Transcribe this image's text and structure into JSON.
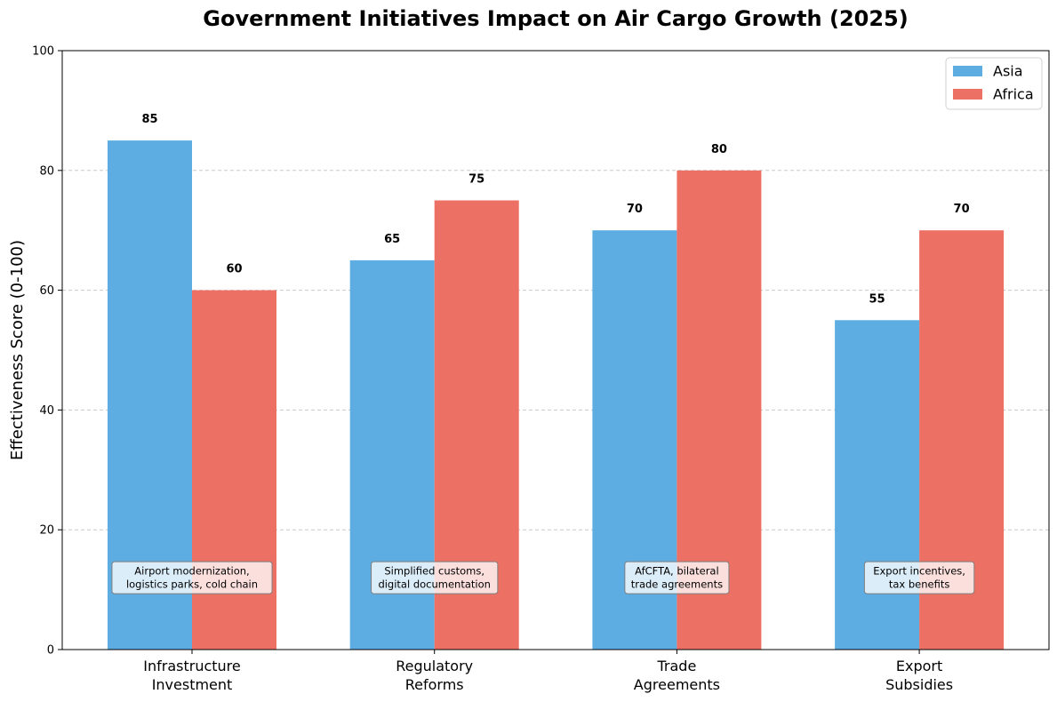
{
  "chart_data": {
    "type": "bar",
    "title": "Government Initiatives Impact on Air Cargo Growth (2025)",
    "xlabel": "",
    "ylabel": "Effectiveness Score (0-100)",
    "ylim": [
      0,
      100
    ],
    "yticks": [
      0,
      20,
      40,
      60,
      80,
      100
    ],
    "grid": true,
    "legend_position": "top-right",
    "categories": [
      [
        "Infrastructure",
        "Investment"
      ],
      [
        "Regulatory",
        "Reforms"
      ],
      [
        "Trade",
        "Agreements"
      ],
      [
        "Export",
        "Subsidies"
      ]
    ],
    "series": [
      {
        "name": "Asia",
        "color": "#5DADE2",
        "values": [
          85,
          65,
          70,
          55
        ]
      },
      {
        "name": "Africa",
        "color": "#EC7063",
        "values": [
          60,
          75,
          80,
          70
        ]
      }
    ],
    "annotations": [
      [
        "Airport modernization,",
        "logistics parks, cold chain"
      ],
      [
        "Simplified customs,",
        "digital documentation"
      ],
      [
        "AfCFTA, bilateral",
        "trade agreements"
      ],
      [
        "Export incentives,",
        "tax benefits"
      ]
    ],
    "annotation_value": 12
  }
}
